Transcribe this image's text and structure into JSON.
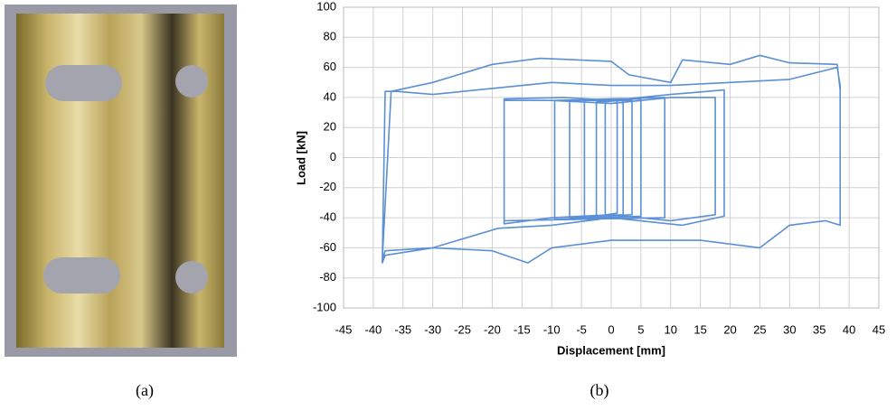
{
  "chart_data": {
    "type": "line",
    "xlabel": "Displacement [mm]",
    "ylabel": "Load [kN]",
    "xlim": [
      -45,
      45
    ],
    "ylim": [
      -100,
      100
    ],
    "xticks": [
      -45,
      -40,
      -35,
      -30,
      -25,
      -20,
      -15,
      -10,
      -5,
      0,
      5,
      10,
      15,
      20,
      25,
      30,
      35,
      40,
      45
    ],
    "yticks": [
      -100,
      -80,
      -60,
      -40,
      -20,
      0,
      20,
      40,
      60,
      80,
      100
    ],
    "grid": true,
    "x": [
      -1,
      -1,
      1,
      1,
      -2.5,
      -2.5,
      2,
      2,
      -4.5,
      -4.5,
      3.5,
      3.5,
      -7,
      -7,
      5,
      5,
      -9.5,
      -9.5,
      9,
      9,
      -18,
      -18,
      -10,
      0,
      10,
      17.5,
      17.5,
      10,
      0,
      -10,
      -18,
      -18,
      -8,
      0,
      10,
      19,
      19,
      12,
      0,
      -10,
      -19,
      -30,
      -38,
      -38.5,
      -38,
      -36,
      -30,
      -20,
      -10,
      0,
      10,
      20,
      30,
      38,
      38.5,
      38.5,
      36,
      30,
      25,
      15,
      0,
      -10,
      -14,
      -20,
      -30,
      -38,
      -38.5,
      -37,
      -30,
      -20,
      -12,
      0,
      3,
      10,
      12,
      20,
      25,
      30,
      38,
      38.5
    ],
    "series": [
      {
        "color": "#5b8fd6",
        "values": [
          -38,
          37,
          38,
          -37,
          -39,
          37,
          38,
          -38,
          -39,
          38,
          38,
          -38,
          -40,
          38,
          39,
          -39,
          -41,
          38,
          40,
          -40,
          -42,
          38,
          38,
          36,
          40,
          40,
          -38,
          -42,
          -38,
          -40,
          -44,
          39,
          40,
          38,
          42,
          45,
          -39,
          -45,
          -40,
          -45,
          -47,
          -60,
          -65,
          -70,
          44,
          44,
          42,
          46,
          50,
          48,
          48,
          50,
          52,
          60,
          48,
          -45,
          -42,
          -45,
          -60,
          -55,
          -55,
          -60,
          -70,
          -62,
          -60,
          -62,
          -68,
          44,
          50,
          62,
          66,
          64,
          55,
          50,
          65,
          62,
          68,
          63,
          62,
          45
        ]
      }
    ]
  },
  "figure": {
    "panel_labels": [
      "(a)",
      "(b)"
    ]
  }
}
